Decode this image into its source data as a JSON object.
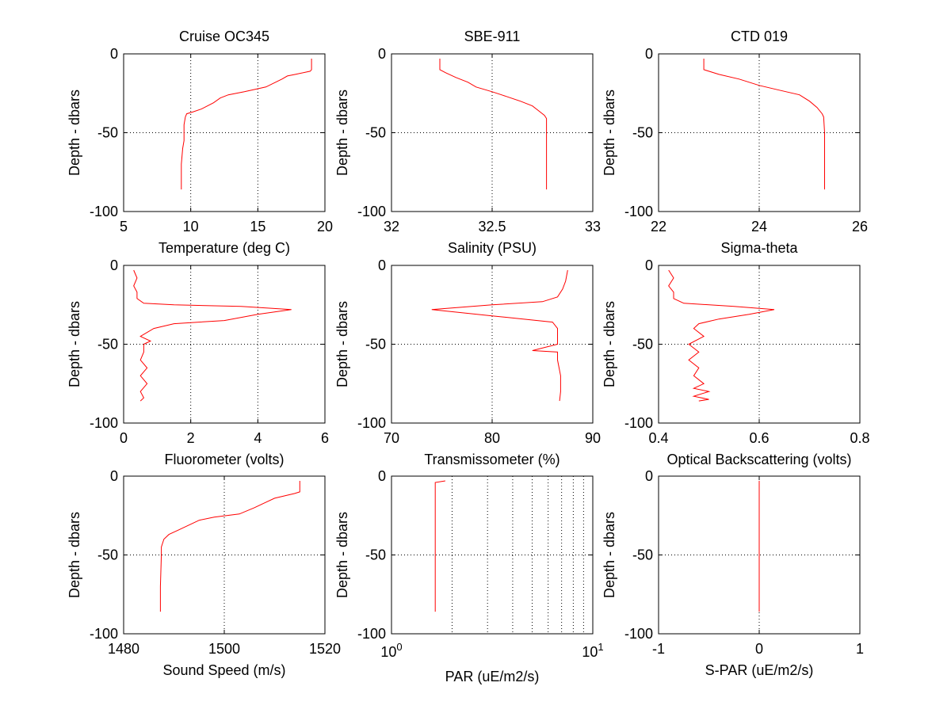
{
  "figure": {
    "panel_titles": [
      "Cruise OC345",
      "SBE-911",
      "CTD 019"
    ],
    "y_label": "Depth - dbars",
    "line_color": "#ff0000",
    "axis_color": "#000000",
    "grid_color": "#000000",
    "background": "#ffffff"
  },
  "chart_data": [
    {
      "type": "line",
      "title": "Cruise OC345",
      "xlabel": "Temperature (deg C)",
      "ylabel": "Depth - dbars",
      "xlim": [
        5,
        20
      ],
      "ylim": [
        -100,
        0
      ],
      "x_scale": "linear",
      "grid": true,
      "xticks": [
        5,
        10,
        15,
        20
      ],
      "xtick_labels": [
        "5",
        "10",
        "15",
        "20"
      ],
      "yticks": [
        0,
        -50,
        -100
      ],
      "ytick_labels": [
        "0",
        "-50",
        "-100"
      ],
      "series": [
        {
          "x": [
            19.0,
            19.0,
            18.9,
            17.8,
            17.2,
            16.8,
            15.6,
            14.0,
            12.8,
            12.2,
            11.7,
            10.8,
            10.1,
            9.7,
            9.6,
            9.5,
            9.5,
            9.5,
            9.4,
            9.3,
            9.3,
            9.3
          ],
          "y": [
            -3,
            -10,
            -11,
            -13,
            -14,
            -16,
            -21,
            -24,
            -26,
            -28,
            -31,
            -35,
            -37,
            -38,
            -40,
            -45,
            -50,
            -55,
            -60,
            -70,
            -80,
            -86
          ]
        }
      ]
    },
    {
      "type": "line",
      "title": "SBE-911",
      "xlabel": "Salinity (PSU)",
      "ylabel": "Depth - dbars",
      "xlim": [
        32,
        33
      ],
      "ylim": [
        -100,
        0
      ],
      "x_scale": "linear",
      "grid": true,
      "xticks": [
        32,
        32.5,
        33
      ],
      "xtick_labels": [
        "32",
        "32.5",
        "33"
      ],
      "yticks": [
        0,
        -50,
        -100
      ],
      "ytick_labels": [
        "0",
        "-50",
        "-100"
      ],
      "series": [
        {
          "x": [
            32.24,
            32.24,
            32.27,
            32.32,
            32.38,
            32.42,
            32.5,
            32.57,
            32.64,
            32.7,
            32.73,
            32.76,
            32.77,
            32.77,
            32.77,
            32.77
          ],
          "y": [
            -3,
            -10,
            -12,
            -15,
            -18,
            -21,
            -24,
            -27,
            -30,
            -33,
            -36,
            -39,
            -41,
            -50,
            -70,
            -86
          ]
        }
      ]
    },
    {
      "type": "line",
      "title": "CTD 019",
      "xlabel": "Sigma-theta",
      "ylabel": "Depth - dbars",
      "xlim": [
        22,
        26
      ],
      "ylim": [
        -100,
        0
      ],
      "x_scale": "linear",
      "grid": true,
      "xticks": [
        22,
        24,
        26
      ],
      "xtick_labels": [
        "22",
        "24",
        "26"
      ],
      "yticks": [
        0,
        -50,
        -100
      ],
      "ytick_labels": [
        "0",
        "-50",
        "-100"
      ],
      "series": [
        {
          "x": [
            22.9,
            22.9,
            23.2,
            23.6,
            24.0,
            24.4,
            24.8,
            25.0,
            25.15,
            25.25,
            25.28,
            25.3,
            25.3,
            25.3
          ],
          "y": [
            -3,
            -10,
            -13,
            -16,
            -20,
            -23,
            -26,
            -30,
            -34,
            -38,
            -40,
            -50,
            -70,
            -86
          ]
        }
      ]
    },
    {
      "type": "line",
      "title": "",
      "xlabel": "Fluorometer (volts)",
      "ylabel": "Depth - dbars",
      "xlim": [
        0,
        6
      ],
      "ylim": [
        -100,
        0
      ],
      "x_scale": "linear",
      "grid": true,
      "xticks": [
        0,
        2,
        4,
        6
      ],
      "xtick_labels": [
        "0",
        "2",
        "4",
        "6"
      ],
      "yticks": [
        0,
        -50,
        -100
      ],
      "ytick_labels": [
        "0",
        "-50",
        "-100"
      ],
      "series": [
        {
          "x": [
            0.3,
            0.4,
            0.3,
            0.4,
            0.4,
            0.6,
            1.5,
            3.5,
            5.0,
            4.0,
            3.0,
            1.5,
            0.9,
            0.5,
            0.8,
            0.6,
            0.6,
            0.5,
            0.7,
            0.5,
            0.7,
            0.5,
            0.6,
            0.5
          ],
          "y": [
            -3,
            -8,
            -13,
            -17,
            -21,
            -24,
            -25,
            -26,
            -28,
            -31,
            -35,
            -37,
            -40,
            -45,
            -48,
            -50,
            -55,
            -60,
            -65,
            -70,
            -75,
            -80,
            -84,
            -86
          ]
        }
      ]
    },
    {
      "type": "line",
      "title": "",
      "xlabel": "Transmissometer (%)",
      "ylabel": "Depth - dbars",
      "xlim": [
        70,
        90
      ],
      "ylim": [
        -100,
        0
      ],
      "x_scale": "linear",
      "grid": true,
      "xticks": [
        70,
        80,
        90
      ],
      "xtick_labels": [
        "70",
        "80",
        "90"
      ],
      "yticks": [
        0,
        -50,
        -100
      ],
      "ytick_labels": [
        "0",
        "-50",
        "-100"
      ],
      "series": [
        {
          "x": [
            87.5,
            87.3,
            87.0,
            86.5,
            85.0,
            80.0,
            74.0,
            80.0,
            86.0,
            86.5,
            86.5,
            84.0,
            86.5,
            86.5,
            86.8,
            86.8,
            86.7
          ],
          "y": [
            -3,
            -10,
            -15,
            -20,
            -23,
            -25,
            -28,
            -32,
            -36,
            -40,
            -50,
            -54,
            -55,
            -60,
            -70,
            -80,
            -86
          ]
        }
      ]
    },
    {
      "type": "line",
      "title": "",
      "xlabel": "Optical Backscattering (volts)",
      "ylabel": "Depth - dbars",
      "xlim": [
        0.4,
        0.8
      ],
      "ylim": [
        -100,
        0
      ],
      "x_scale": "linear",
      "grid": true,
      "xticks": [
        0.4,
        0.6,
        0.8
      ],
      "xtick_labels": [
        "0.4",
        "0.6",
        "0.8"
      ],
      "yticks": [
        0,
        -50,
        -100
      ],
      "ytick_labels": [
        "0",
        "-50",
        "-100"
      ],
      "series": [
        {
          "x": [
            0.42,
            0.43,
            0.42,
            0.43,
            0.43,
            0.45,
            0.55,
            0.63,
            0.58,
            0.52,
            0.48,
            0.47,
            0.49,
            0.46,
            0.48,
            0.46,
            0.48,
            0.47,
            0.49,
            0.47,
            0.5,
            0.47,
            0.5,
            0.48
          ],
          "y": [
            -3,
            -8,
            -13,
            -17,
            -21,
            -24,
            -26,
            -28,
            -31,
            -34,
            -37,
            -40,
            -45,
            -50,
            -55,
            -60,
            -65,
            -70,
            -75,
            -78,
            -80,
            -83,
            -85,
            -86
          ]
        }
      ]
    },
    {
      "type": "line",
      "title": "",
      "xlabel": "Sound Speed (m/s)",
      "ylabel": "Depth - dbars",
      "xlim": [
        1480,
        1520
      ],
      "ylim": [
        -100,
        0
      ],
      "x_scale": "linear",
      "grid": true,
      "xticks": [
        1480,
        1500,
        1520
      ],
      "xtick_labels": [
        "1480",
        "1500",
        "1520"
      ],
      "yticks": [
        0,
        -50,
        -100
      ],
      "ytick_labels": [
        "0",
        "-50",
        "-100"
      ],
      "series": [
        {
          "x": [
            1515,
            1515,
            1514,
            1510,
            1508,
            1506,
            1503,
            1498,
            1495,
            1493,
            1491,
            1489,
            1488,
            1487.5,
            1487.5,
            1487.3,
            1487.3
          ],
          "y": [
            -3,
            -10,
            -11,
            -14,
            -17,
            -20,
            -24,
            -26,
            -28,
            -31,
            -34,
            -37,
            -40,
            -45,
            -50,
            -70,
            -86
          ]
        }
      ]
    },
    {
      "type": "line",
      "title": "",
      "xlabel": "PAR (uE/m2/s)",
      "ylabel": "Depth - dbars",
      "xlim": [
        1,
        10
      ],
      "ylim": [
        -100,
        0
      ],
      "x_scale": "log",
      "grid": true,
      "xticks": [
        1,
        10
      ],
      "xtick_labels": [
        [
          "10",
          "0"
        ],
        [
          "10",
          "1"
        ]
      ],
      "yticks": [
        0,
        -50,
        -100
      ],
      "ytick_labels": [
        "0",
        "-50",
        "-100"
      ],
      "series": [
        {
          "x": [
            1.85,
            1.65,
            1.65,
            1.65
          ],
          "y": [
            -3,
            -4,
            -40,
            -86
          ]
        }
      ]
    },
    {
      "type": "line",
      "title": "",
      "xlabel": "S-PAR  (uE/m2/s)",
      "ylabel": "Depth - dbars",
      "xlim": [
        -1,
        1
      ],
      "ylim": [
        -100,
        0
      ],
      "x_scale": "linear",
      "grid": true,
      "xticks": [
        -1,
        0,
        1
      ],
      "xtick_labels": [
        "-1",
        "0",
        "1"
      ],
      "yticks": [
        0,
        -50,
        -100
      ],
      "ytick_labels": [
        "0",
        "-50",
        "-100"
      ],
      "series": [
        {
          "x": [
            0,
            0
          ],
          "y": [
            -3,
            -86
          ]
        }
      ]
    }
  ]
}
